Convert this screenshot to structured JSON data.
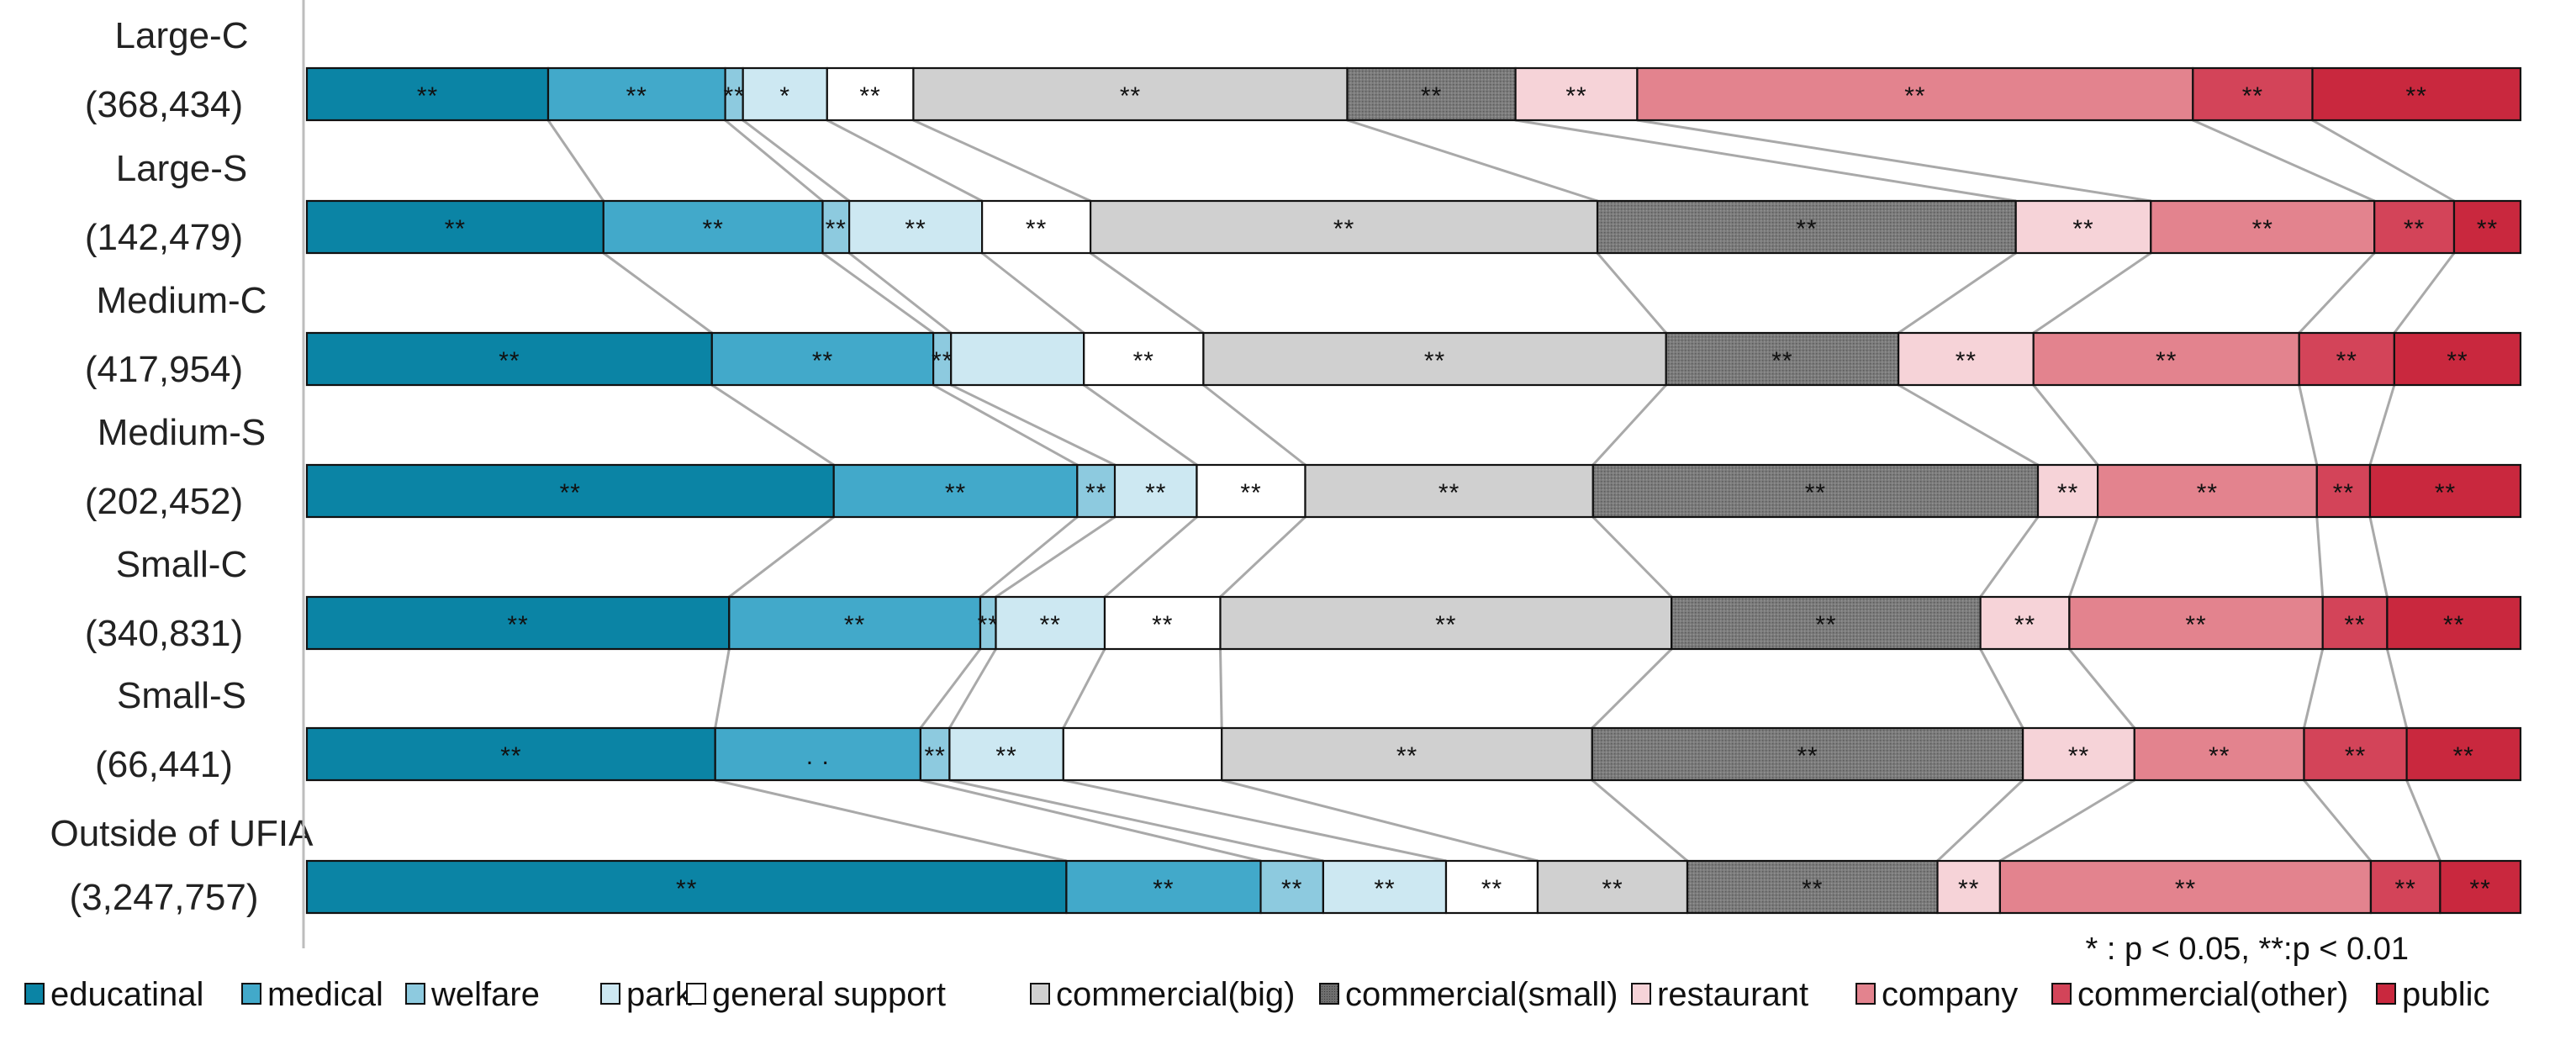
{
  "chart_data": {
    "type": "bar",
    "stacked": true,
    "orientation": "horizontal",
    "normalized": true,
    "title": "",
    "xlabel": "",
    "ylabel": "",
    "xlim": [
      0,
      100
    ],
    "grid": false,
    "legend_position": "bottom",
    "categories": [
      "Large-C",
      "Large-S",
      "Medium-C",
      "Medium-S",
      "Small-C",
      "Small-S",
      "Outside of UFIA"
    ],
    "category_counts": [
      "(368,434)",
      "(142,479)",
      "(417,954)",
      "(202,452)",
      "(340,831)",
      "(66,441)",
      "(3,247,757)"
    ],
    "series": [
      {
        "name": "educatinal",
        "color": "#0B84A5",
        "values": [
          10.9,
          13.4,
          18.3,
          23.8,
          19.0,
          18.3,
          34.0
        ]
      },
      {
        "name": "medical",
        "color": "#42A9CA",
        "values": [
          8.0,
          9.9,
          10.0,
          11.0,
          11.3,
          9.2,
          8.7
        ]
      },
      {
        "name": "welfare",
        "color": "#8DCADF",
        "values": [
          0.8,
          1.2,
          0.8,
          1.7,
          0.7,
          1.3,
          2.8
        ]
      },
      {
        "name": "park",
        "color": "#CDE8F2",
        "values": [
          3.8,
          6.0,
          6.0,
          3.7,
          4.9,
          5.1,
          5.5
        ]
      },
      {
        "name": "general support",
        "color": "#FFFFFF",
        "values": [
          3.9,
          4.9,
          5.4,
          4.9,
          5.2,
          7.1,
          4.1
        ]
      },
      {
        "name": "commercial(big)",
        "color": "#D0D0D0",
        "values": [
          19.6,
          22.9,
          20.9,
          13.0,
          20.3,
          16.6,
          6.7
        ]
      },
      {
        "name": "commercial(small)",
        "color": "#7B7B7B",
        "values": [
          7.6,
          18.9,
          10.5,
          20.1,
          13.9,
          19.3,
          11.2
        ]
      },
      {
        "name": "restaurant",
        "color": "#F6D3D8",
        "values": [
          5.5,
          6.1,
          6.1,
          2.7,
          4.0,
          5.0,
          2.8
        ]
      },
      {
        "name": "company",
        "color": "#E3838E",
        "values": [
          25.1,
          10.1,
          12.0,
          9.9,
          11.4,
          7.6,
          16.6
        ]
      },
      {
        "name": "commercial(other)",
        "color": "#D34459",
        "values": [
          5.4,
          3.6,
          4.3,
          2.4,
          2.9,
          4.6,
          3.1
        ]
      },
      {
        "name": "public",
        "color": "#C9283E",
        "values": [
          9.4,
          3.0,
          5.7,
          6.8,
          6.0,
          5.1,
          3.6
        ]
      }
    ],
    "significance": [
      [
        "**",
        "**",
        "**",
        "*",
        "**",
        "**",
        "**",
        "**",
        "**",
        "**",
        "**"
      ],
      [
        "**",
        "**",
        "**",
        "**",
        "**",
        "**",
        "**",
        "**",
        "**",
        "**",
        "**"
      ],
      [
        "**",
        "**",
        "**",
        "",
        "**",
        "**",
        "**",
        "**",
        "**",
        "**",
        "**"
      ],
      [
        "**",
        "**",
        "**",
        "**",
        "**",
        "**",
        "**",
        "**",
        "**",
        "**",
        "**"
      ],
      [
        "**",
        "**",
        "**",
        "**",
        "**",
        "**",
        "**",
        "**",
        "**",
        "**",
        "**"
      ],
      [
        "**",
        ". .",
        "**",
        "**",
        "",
        "**",
        "**",
        "**",
        "**",
        "**",
        "**"
      ],
      [
        "**",
        "**",
        "**",
        "**",
        "**",
        "**",
        "**",
        "**",
        "**",
        "**",
        "**"
      ]
    ],
    "note": "* :  p < 0.05,  **:p < 0.01"
  }
}
